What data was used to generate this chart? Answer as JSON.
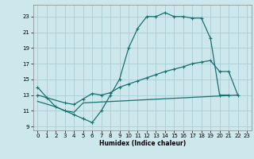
{
  "xlabel": "Humidex (Indice chaleur)",
  "background_color": "#cce8ec",
  "grid_color": "#aaccd4",
  "line_color": "#1a7070",
  "xlim": [
    -0.5,
    23.5
  ],
  "ylim": [
    8.5,
    24.5
  ],
  "xticks": [
    0,
    1,
    2,
    3,
    4,
    5,
    6,
    7,
    8,
    9,
    10,
    11,
    12,
    13,
    14,
    15,
    16,
    17,
    18,
    19,
    20,
    21,
    22,
    23
  ],
  "yticks": [
    9,
    11,
    13,
    15,
    17,
    19,
    21,
    23
  ],
  "curve1_x": [
    0,
    1,
    2,
    3,
    4,
    5,
    6,
    7,
    8,
    9,
    10,
    11,
    12,
    13,
    14,
    15,
    16,
    17,
    18,
    19,
    20,
    21
  ],
  "curve1_y": [
    14.0,
    12.7,
    11.5,
    11.0,
    10.5,
    10.0,
    9.5,
    11.0,
    13.0,
    15.0,
    19.0,
    21.5,
    23.0,
    23.0,
    23.5,
    23.0,
    23.0,
    22.8,
    22.8,
    20.2,
    13.0,
    13.0
  ],
  "curve2_x": [
    0,
    3,
    4,
    5,
    6,
    7,
    8,
    9,
    10,
    11,
    12,
    13,
    14,
    15,
    16,
    17,
    18,
    19,
    20,
    21,
    22
  ],
  "curve2_y": [
    13.0,
    12.0,
    11.8,
    12.5,
    13.2,
    13.0,
    13.3,
    14.0,
    14.4,
    14.8,
    15.2,
    15.6,
    16.0,
    16.3,
    16.6,
    17.0,
    17.2,
    17.4,
    16.0,
    16.0,
    13.0
  ],
  "curve3_x": [
    0,
    2,
    3,
    4,
    5,
    22
  ],
  "curve3_y": [
    12.2,
    11.5,
    11.0,
    10.8,
    12.0,
    13.0
  ]
}
